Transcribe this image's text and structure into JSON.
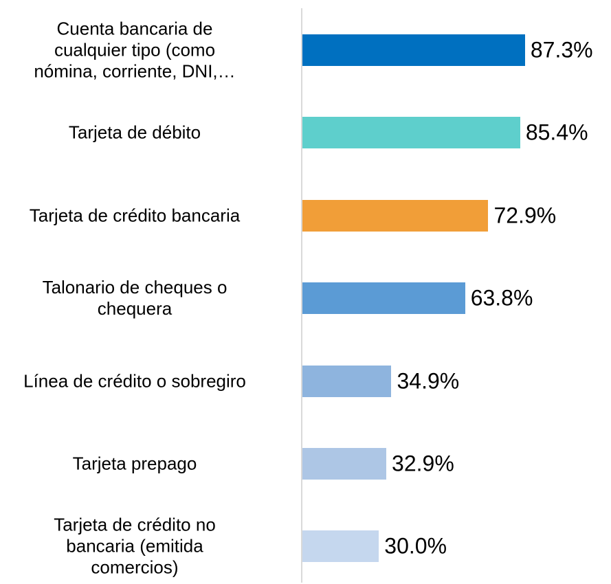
{
  "chart_data": {
    "type": "barh",
    "categories": [
      "Cuenta bancaria de\ncualquier tipo (como\nnómina, corriente, DNI,…",
      "Tarjeta de débito",
      "Tarjeta de crédito bancaria",
      "Talonario de cheques o\nchequera",
      "Línea de crédito o sobregiro",
      "Tarjeta prepago",
      "Tarjeta de crédito no\nbancaria (emitida\ncomercios)"
    ],
    "values": [
      87.3,
      85.4,
      72.9,
      63.8,
      34.9,
      32.9,
      30.0
    ],
    "value_labels": [
      "87.3%",
      "85.4%",
      "72.9%",
      "63.8%",
      "34.9%",
      "32.9%",
      "30.0%"
    ],
    "colors": [
      "#0070c0",
      "#5ecfcc",
      "#f19e38",
      "#5b9bd5",
      "#8eb4de",
      "#adc6e5",
      "#c5d7ee"
    ],
    "xlim": [
      0,
      100
    ]
  }
}
